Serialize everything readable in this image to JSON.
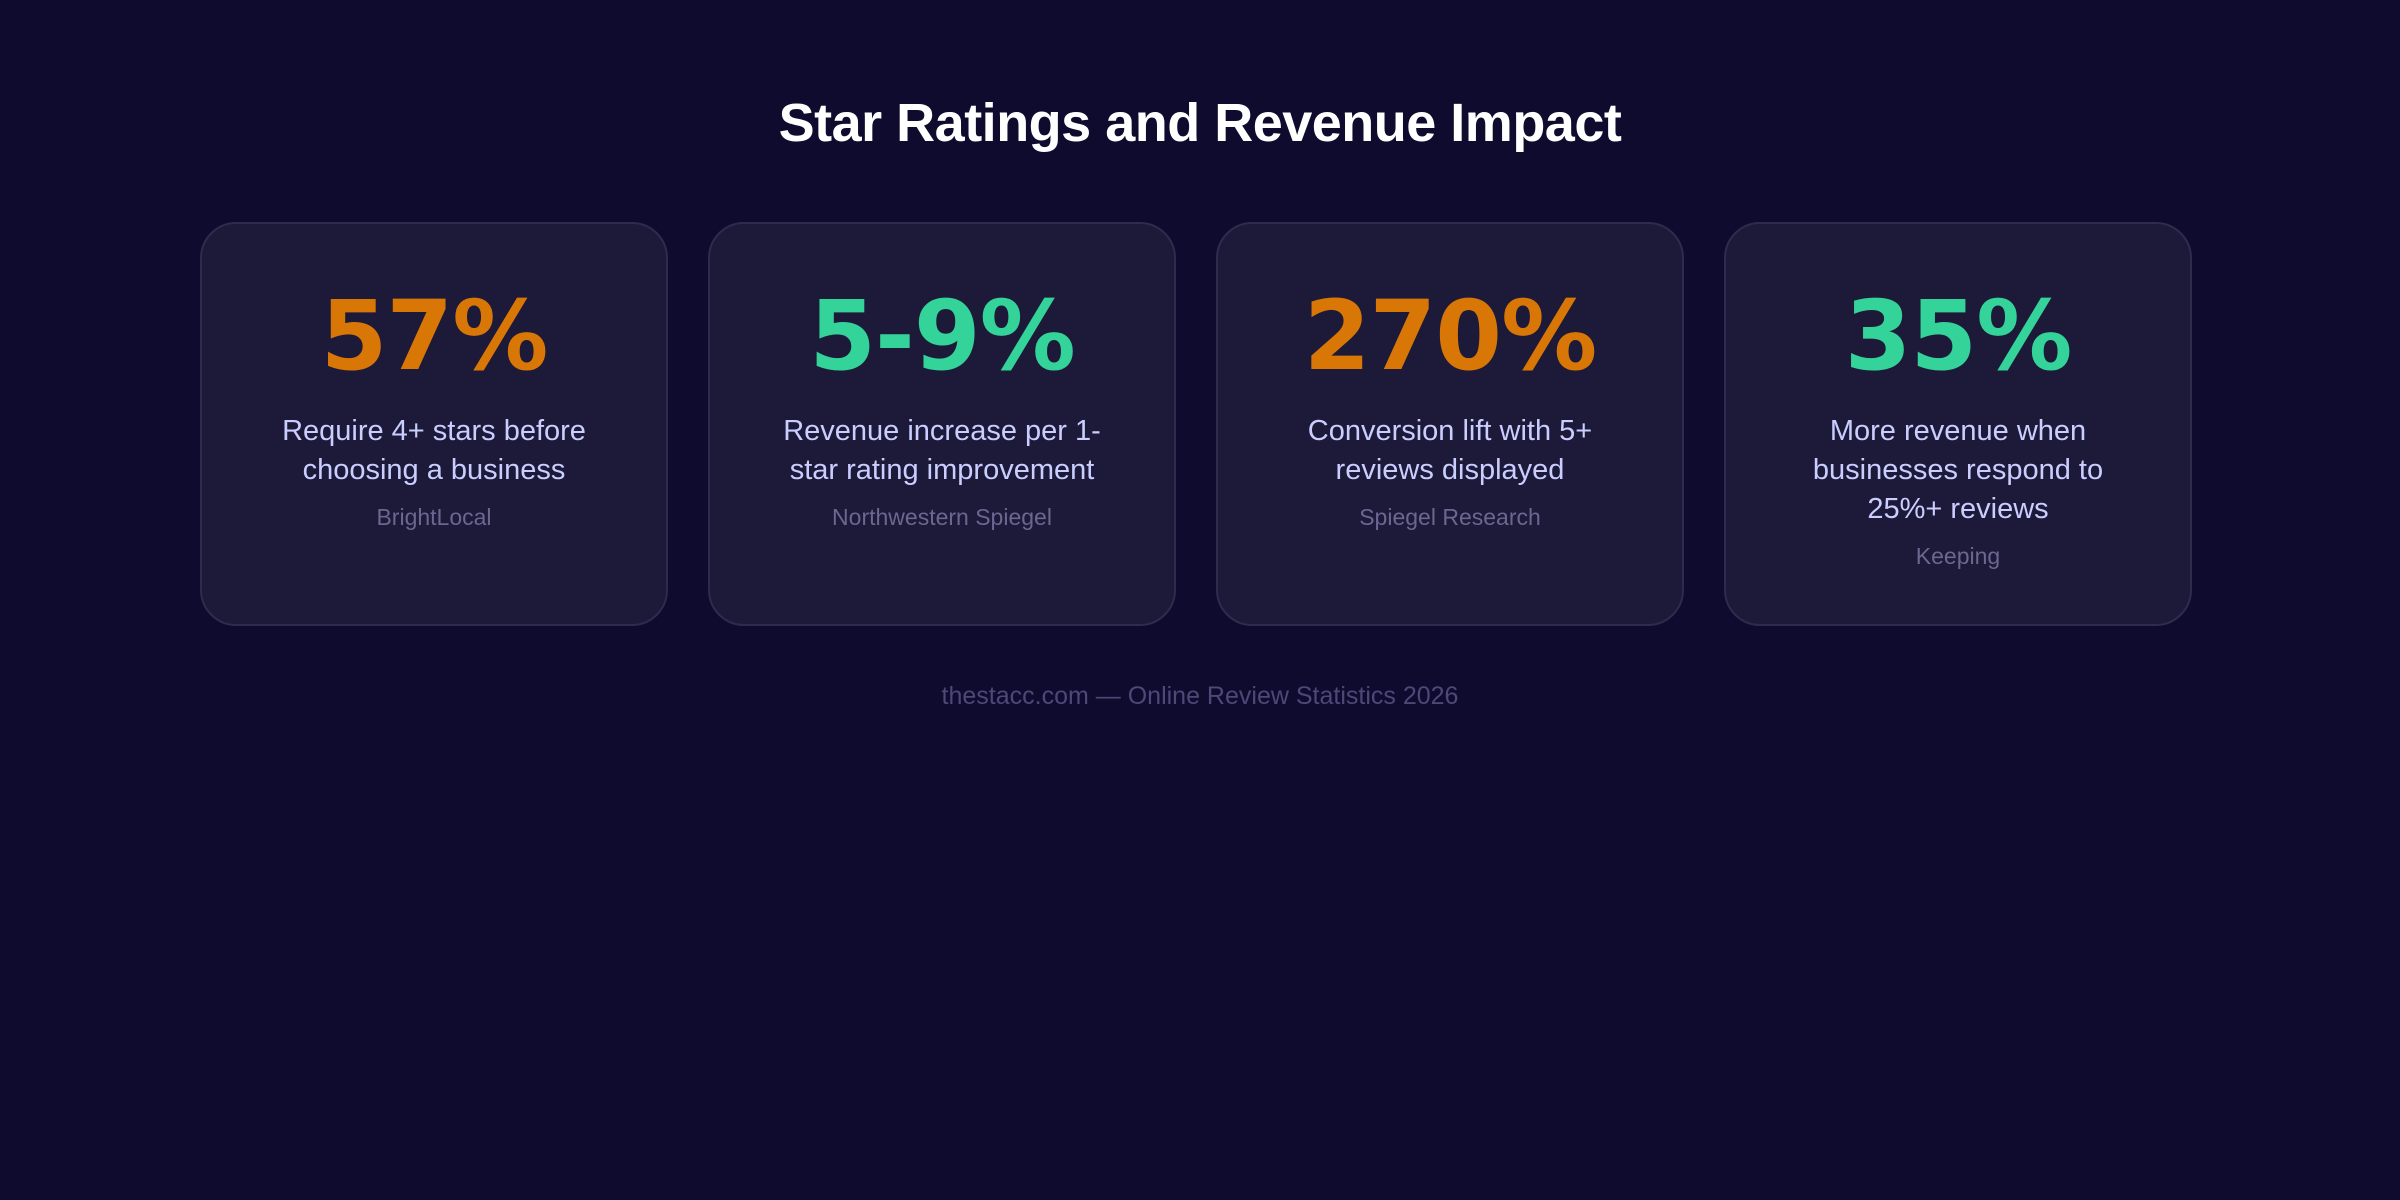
{
  "title": "Star Ratings and Revenue Impact",
  "colors": {
    "orange": "#d97706",
    "green": "#34d399"
  },
  "cards": [
    {
      "stat": "57%",
      "description": "Require 4+ stars before choosing a business",
      "source": "BrightLocal",
      "color": "#d97706"
    },
    {
      "stat": "5-9%",
      "description": "Revenue increase per 1-star rating improvement",
      "source": "Northwestern Spiegel",
      "color": "#34d399"
    },
    {
      "stat": "270%",
      "description": "Conversion lift with 5+ reviews displayed",
      "source": "Spiegel Research",
      "color": "#d97706"
    },
    {
      "stat": "35%",
      "description": "More revenue when businesses respond to 25%+ reviews",
      "source": "Keeping",
      "color": "#34d399"
    }
  ],
  "footer": "thestacc.com — Online Review Statistics 2026"
}
